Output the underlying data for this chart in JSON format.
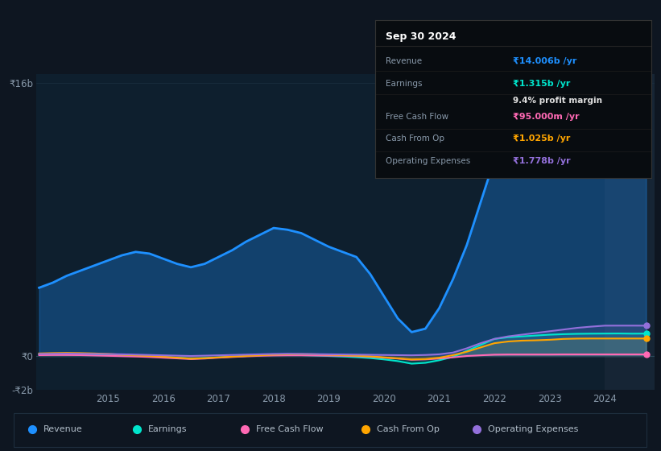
{
  "background_color": "#0e1621",
  "plot_bg_color": "#0e1f2e",
  "title_box": {
    "date": "Sep 30 2024",
    "rows": [
      {
        "label": "Revenue",
        "value": "₹14.006b /yr",
        "value_color": "#1e90ff"
      },
      {
        "label": "Earnings",
        "value": "₹1.315b /yr",
        "value_color": "#00e5cc",
        "sub_label": "9.4% profit margin",
        "sub_color": "#e0e0e0"
      },
      {
        "label": "Free Cash Flow",
        "value": "₹95.000m /yr",
        "value_color": "#ff69b4"
      },
      {
        "label": "Cash From Op",
        "value": "₹1.025b /yr",
        "value_color": "#ffa500"
      },
      {
        "label": "Operating Expenses",
        "value": "₹1.778b /yr",
        "value_color": "#9370db"
      }
    ],
    "box_bg": "#080c10",
    "box_border": "#333333",
    "label_color": "#8899aa",
    "date_color": "#ffffff"
  },
  "years": [
    2013.75,
    2014.0,
    2014.25,
    2014.5,
    2014.75,
    2015.0,
    2015.25,
    2015.5,
    2015.75,
    2016.0,
    2016.25,
    2016.5,
    2016.75,
    2017.0,
    2017.25,
    2017.5,
    2017.75,
    2018.0,
    2018.25,
    2018.5,
    2018.75,
    2019.0,
    2019.25,
    2019.5,
    2019.75,
    2020.0,
    2020.25,
    2020.5,
    2020.75,
    2021.0,
    2021.25,
    2021.5,
    2021.75,
    2022.0,
    2022.25,
    2022.5,
    2022.75,
    2023.0,
    2023.25,
    2023.5,
    2023.75,
    2024.0,
    2024.25,
    2024.5,
    2024.75
  ],
  "revenue": [
    4.0,
    4.3,
    4.7,
    5.0,
    5.3,
    5.6,
    5.9,
    6.1,
    6.0,
    5.7,
    5.4,
    5.2,
    5.4,
    5.8,
    6.2,
    6.7,
    7.1,
    7.5,
    7.4,
    7.2,
    6.8,
    6.4,
    6.1,
    5.8,
    4.8,
    3.5,
    2.2,
    1.4,
    1.6,
    2.8,
    4.5,
    6.5,
    9.0,
    11.5,
    13.5,
    14.8,
    14.6,
    14.3,
    13.9,
    13.8,
    13.85,
    14.0,
    14.1,
    14.15,
    14.006
  ],
  "earnings": [
    0.1,
    0.12,
    0.13,
    0.12,
    0.1,
    0.08,
    0.06,
    0.03,
    -0.02,
    -0.05,
    -0.1,
    -0.15,
    -0.12,
    -0.08,
    -0.04,
    0.0,
    0.04,
    0.08,
    0.07,
    0.05,
    0.03,
    0.0,
    -0.03,
    -0.07,
    -0.12,
    -0.2,
    -0.3,
    -0.45,
    -0.4,
    -0.25,
    -0.05,
    0.3,
    0.65,
    1.0,
    1.1,
    1.15,
    1.2,
    1.25,
    1.28,
    1.3,
    1.31,
    1.315,
    1.32,
    1.31,
    1.315
  ],
  "free_cash_flow": [
    0.05,
    0.06,
    0.06,
    0.05,
    0.03,
    0.01,
    -0.01,
    -0.03,
    -0.06,
    -0.1,
    -0.14,
    -0.18,
    -0.15,
    -0.1,
    -0.06,
    -0.02,
    0.01,
    0.03,
    0.04,
    0.04,
    0.03,
    0.02,
    0.01,
    -0.01,
    -0.04,
    -0.1,
    -0.15,
    -0.22,
    -0.2,
    -0.15,
    -0.08,
    0.0,
    0.04,
    0.08,
    0.09,
    0.09,
    0.09,
    0.09,
    0.095,
    0.095,
    0.095,
    0.095,
    0.095,
    0.095,
    0.095
  ],
  "cash_from_op": [
    0.15,
    0.17,
    0.18,
    0.17,
    0.15,
    0.12,
    0.08,
    0.04,
    0.0,
    -0.04,
    -0.1,
    -0.16,
    -0.13,
    -0.08,
    -0.04,
    0.0,
    0.04,
    0.08,
    0.1,
    0.11,
    0.1,
    0.08,
    0.05,
    0.02,
    -0.02,
    -0.08,
    -0.14,
    -0.2,
    -0.18,
    -0.1,
    0.05,
    0.25,
    0.5,
    0.75,
    0.85,
    0.9,
    0.92,
    0.95,
    1.0,
    1.02,
    1.025,
    1.025,
    1.025,
    1.025,
    1.025
  ],
  "operating_expenses": [
    0.12,
    0.13,
    0.14,
    0.13,
    0.12,
    0.11,
    0.1,
    0.08,
    0.06,
    0.04,
    0.02,
    0.0,
    0.02,
    0.04,
    0.06,
    0.08,
    0.1,
    0.12,
    0.13,
    0.12,
    0.11,
    0.1,
    0.09,
    0.08,
    0.07,
    0.06,
    0.05,
    0.04,
    0.06,
    0.1,
    0.2,
    0.45,
    0.75,
    1.0,
    1.15,
    1.25,
    1.35,
    1.45,
    1.55,
    1.65,
    1.72,
    1.778,
    1.78,
    1.78,
    1.778
  ],
  "ylim": [
    -2.0,
    16.5
  ],
  "yticks": [
    -2.0,
    0.0,
    16.0
  ],
  "ytick_labels": [
    "-₹2b",
    "₹0",
    "₹16b"
  ],
  "xtick_years": [
    2015,
    2016,
    2017,
    2018,
    2019,
    2020,
    2021,
    2022,
    2023,
    2024
  ],
  "colors": {
    "revenue": "#1e90ff",
    "earnings": "#00e5cc",
    "free_cash_flow": "#ff69b4",
    "cash_from_op": "#ffa500",
    "operating_expenses": "#9370db"
  },
  "legend_labels": [
    "Revenue",
    "Earnings",
    "Free Cash Flow",
    "Cash From Op",
    "Operating Expenses"
  ],
  "shaded_x_start": 2024.0
}
